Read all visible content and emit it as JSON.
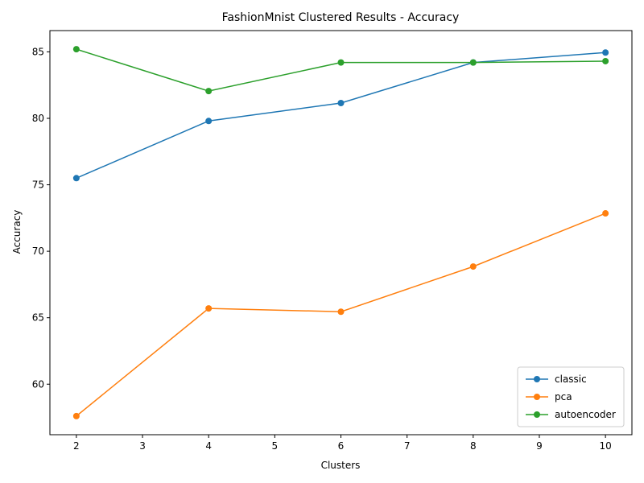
{
  "chart_data": {
    "type": "line",
    "title": "FashionMnist Clustered Results - Accuracy",
    "xlabel": "Clusters",
    "ylabel": "Accuracy",
    "x": [
      2,
      4,
      6,
      8,
      10
    ],
    "xlim": [
      1.6,
      10.4
    ],
    "ylim": [
      56.2,
      86.6
    ],
    "xticks": [
      2,
      3,
      4,
      5,
      6,
      7,
      8,
      9,
      10
    ],
    "yticks": [
      60,
      65,
      70,
      75,
      80,
      85
    ],
    "grid": false,
    "legend_position": "lower-right",
    "series": [
      {
        "name": "classic",
        "color": "#1f77b4",
        "values": [
          75.5,
          79.8,
          81.15,
          84.2,
          84.95
        ]
      },
      {
        "name": "pca",
        "color": "#ff7f0e",
        "values": [
          57.6,
          65.7,
          65.45,
          68.85,
          72.85
        ]
      },
      {
        "name": "autoencoder",
        "color": "#2ca02c",
        "values": [
          85.2,
          82.05,
          84.2,
          84.2,
          84.3
        ]
      }
    ]
  }
}
